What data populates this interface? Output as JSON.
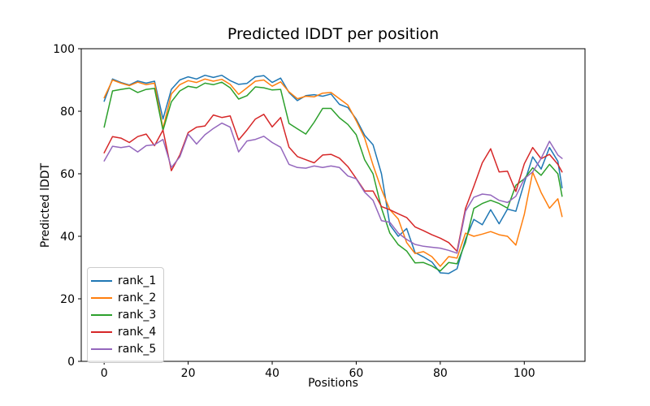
{
  "figure": {
    "title": "Predicted lDDT per position",
    "xlabel": "Positions",
    "ylabel": "Predicted lDDT"
  },
  "chart_data": {
    "type": "line",
    "title": "Predicted lDDT per position",
    "xlabel": "Positions",
    "ylabel": "Predicted lDDT",
    "xlim": [
      -5.45,
      114.45
    ],
    "ylim": [
      0,
      100
    ],
    "xticks": [
      0,
      20,
      40,
      60,
      80,
      100
    ],
    "yticks": [
      0,
      20,
      40,
      60,
      80,
      100
    ],
    "grid": false,
    "legend_position": "lower left",
    "x": [
      0,
      2,
      4,
      6,
      8,
      10,
      12,
      14,
      16,
      18,
      20,
      22,
      24,
      26,
      28,
      30,
      32,
      34,
      36,
      38,
      40,
      42,
      44,
      46,
      48,
      50,
      52,
      54,
      56,
      58,
      60,
      62,
      64,
      66,
      68,
      70,
      72,
      74,
      76,
      78,
      80,
      82,
      84,
      86,
      88,
      90,
      92,
      94,
      96,
      98,
      100,
      102,
      104,
      106,
      108,
      109
    ],
    "series": [
      {
        "name": "rank_1",
        "color": "#1f77b4",
        "values": [
          83.2,
          90.3,
          89.2,
          88.4,
          89.7,
          89.0,
          89.6,
          77.5,
          87.0,
          90.0,
          91.0,
          90.3,
          91.5,
          90.8,
          91.5,
          89.8,
          88.6,
          88.9,
          91.0,
          91.4,
          89.2,
          90.6,
          86.0,
          83.4,
          85.0,
          85.3,
          84.8,
          85.5,
          82.2,
          81.2,
          77.5,
          72.3,
          69.3,
          60.0,
          43.7,
          40.0,
          42.5,
          34.8,
          33.4,
          31.8,
          28.3,
          28.1,
          29.6,
          39.0,
          45.4,
          43.7,
          48.5,
          44.0,
          48.7,
          48.0,
          57.1,
          65.4,
          61.5,
          68.4,
          64.0,
          55.5
        ]
      },
      {
        "name": "rank_2",
        "color": "#ff7f0e",
        "values": [
          84.3,
          90.0,
          89.0,
          88.2,
          89.3,
          88.5,
          89.0,
          74.5,
          85.5,
          88.5,
          89.8,
          89.2,
          90.3,
          89.6,
          90.2,
          88.6,
          85.4,
          87.5,
          89.6,
          90.0,
          88.0,
          89.4,
          86.2,
          84.0,
          84.8,
          84.6,
          85.8,
          86.0,
          84.0,
          82.0,
          77.0,
          71.4,
          62.8,
          55.0,
          48.5,
          45.5,
          38.0,
          34.5,
          35.1,
          33.5,
          30.4,
          33.5,
          33.0,
          41.0,
          40.0,
          40.7,
          41.5,
          40.5,
          40.0,
          37.2,
          47.0,
          60.5,
          54.0,
          49.0,
          52.0,
          46.3
        ]
      },
      {
        "name": "rank_3",
        "color": "#2ca02c",
        "values": [
          74.9,
          86.5,
          87.0,
          87.4,
          86.0,
          87.0,
          87.3,
          73.9,
          83.0,
          86.5,
          88.0,
          87.5,
          89.0,
          88.5,
          89.3,
          87.5,
          83.9,
          85.0,
          87.8,
          87.5,
          86.8,
          87.0,
          76.1,
          74.4,
          72.7,
          76.5,
          80.9,
          80.9,
          77.9,
          75.8,
          72.5,
          64.5,
          60.0,
          49.0,
          41.0,
          37.3,
          35.3,
          31.5,
          31.6,
          30.5,
          28.9,
          31.6,
          31.2,
          38.0,
          48.9,
          50.5,
          51.5,
          50.5,
          49.0,
          56.3,
          58.4,
          61.9,
          59.5,
          63.0,
          60.0,
          52.8
        ]
      },
      {
        "name": "rank_4",
        "color": "#d62728",
        "values": [
          66.7,
          71.9,
          71.4,
          70.0,
          71.9,
          72.7,
          69.0,
          74.0,
          61.0,
          66.0,
          73.2,
          74.9,
          75.3,
          78.8,
          78.0,
          78.5,
          70.8,
          74.0,
          77.5,
          79.0,
          75.0,
          78.0,
          68.5,
          65.5,
          64.5,
          63.5,
          66.0,
          66.2,
          65.0,
          62.3,
          58.5,
          54.5,
          54.5,
          49.5,
          48.5,
          47.2,
          46.0,
          43.0,
          41.8,
          40.5,
          39.4,
          38.0,
          35.2,
          48.9,
          56.0,
          63.5,
          68.0,
          60.6,
          60.8,
          54.3,
          63.2,
          68.4,
          64.8,
          66.2,
          63.0,
          60.6
        ]
      },
      {
        "name": "rank_5",
        "color": "#9467bd",
        "values": [
          64.1,
          68.8,
          68.4,
          68.8,
          67.0,
          69.0,
          69.3,
          71.0,
          62.0,
          65.4,
          72.7,
          69.5,
          72.5,
          74.5,
          76.2,
          74.9,
          67.0,
          70.5,
          71.0,
          72.0,
          70.0,
          68.5,
          63.0,
          62.0,
          61.8,
          62.5,
          62.0,
          62.5,
          62.0,
          59.3,
          58.4,
          54.1,
          51.5,
          45.0,
          44.5,
          41.0,
          39.0,
          37.4,
          36.8,
          36.5,
          36.2,
          35.5,
          34.6,
          48.0,
          52.5,
          53.5,
          53.2,
          51.5,
          50.8,
          52.8,
          58.4,
          60.6,
          64.9,
          70.4,
          66.0,
          64.9
        ]
      }
    ]
  }
}
